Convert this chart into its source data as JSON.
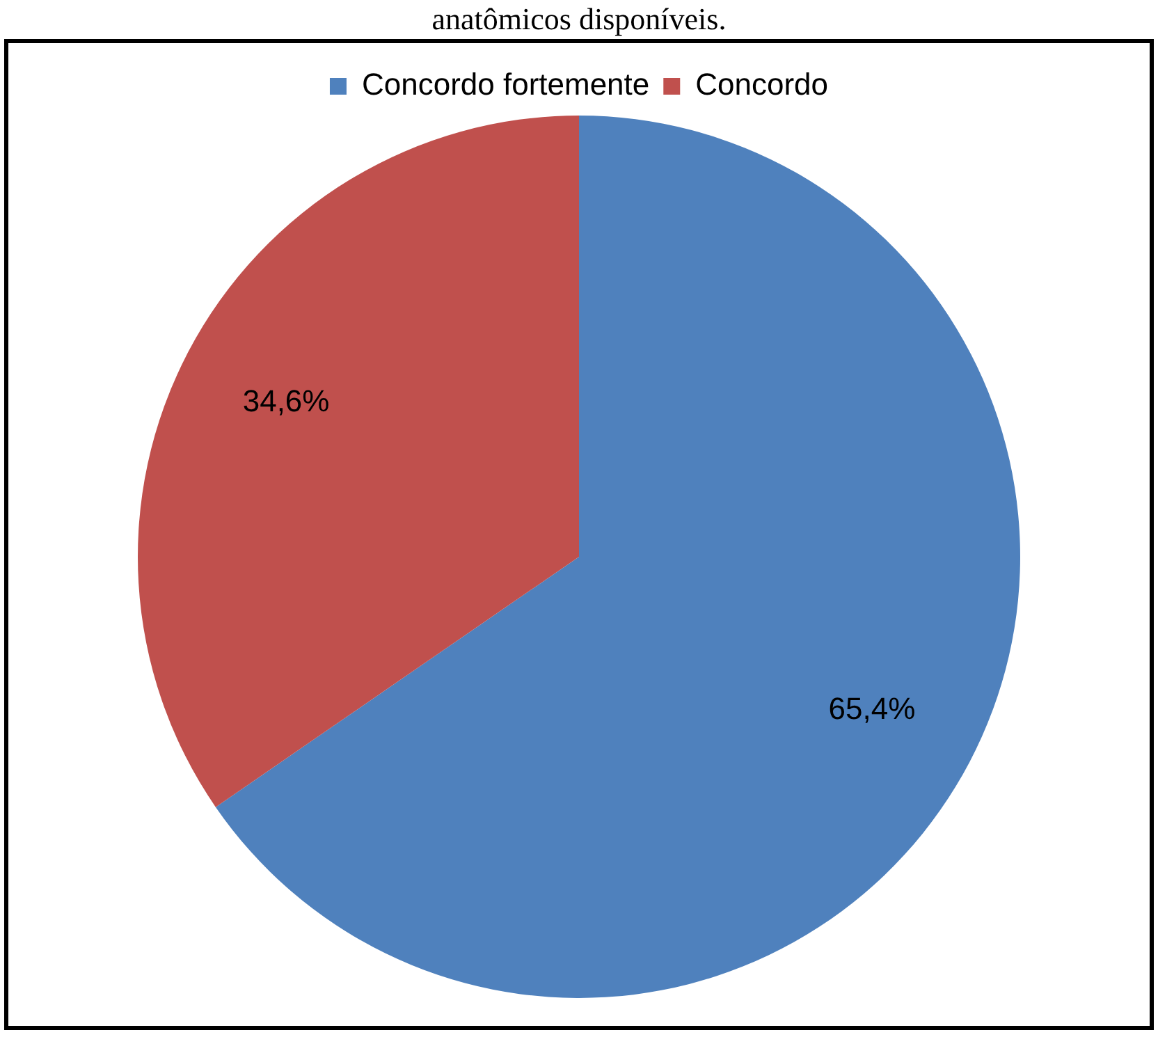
{
  "chart_data": {
    "type": "pie",
    "title": "anatômicos disponíveis.",
    "categories": [
      "Concordo fortemente",
      "Concordo"
    ],
    "values": [
      65.4,
      34.6
    ],
    "colors": [
      "#4f81bd",
      "#c0504d"
    ],
    "value_labels": [
      "65,4%",
      "34,6%"
    ],
    "legend": "top"
  }
}
